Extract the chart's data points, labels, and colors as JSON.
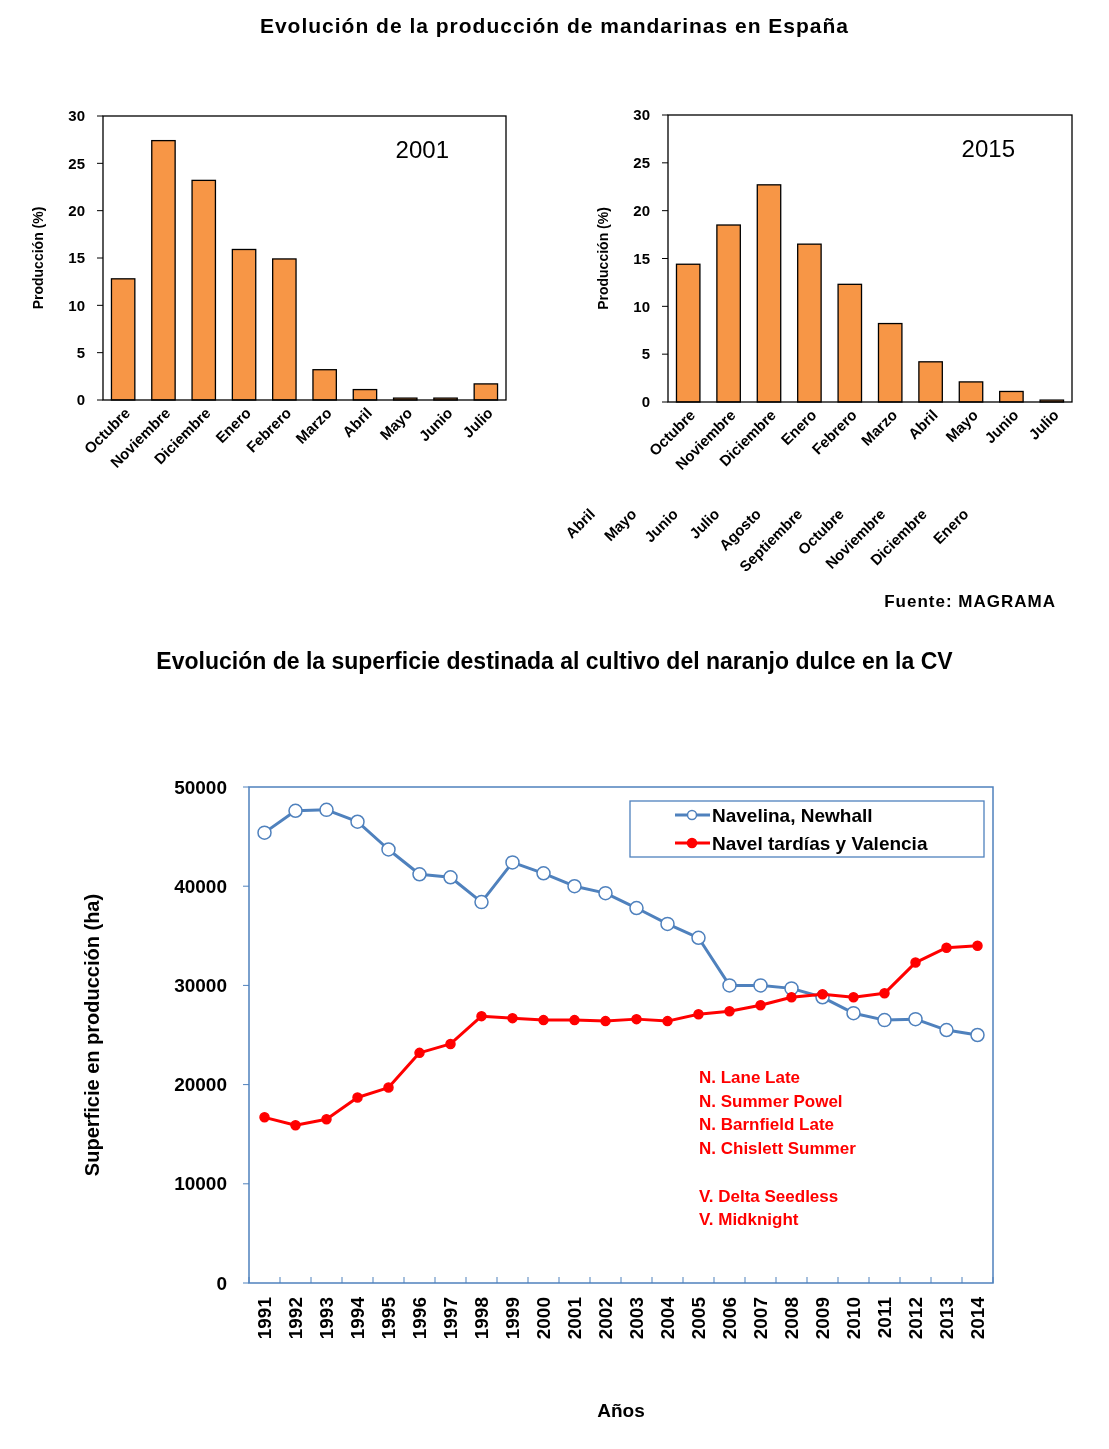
{
  "chart_data": [
    {
      "type": "bar",
      "title": "Evolución de la producción de mandarinas en España",
      "ylabel": "Producción (%)",
      "categories": [
        "Octubre",
        "Noviembre",
        "Diciembre",
        "Enero",
        "Febrero",
        "Marzo",
        "Abril",
        "Mayo",
        "Junio",
        "Julio"
      ],
      "values": [
        12.8,
        27.4,
        23.2,
        15.9,
        14.9,
        3.2,
        1.1,
        0.2,
        0.2,
        1.7
      ],
      "color": "#f79646",
      "ylim": [
        0,
        30
      ],
      "yticks": [
        0,
        5,
        10,
        15,
        20,
        25,
        30
      ],
      "annotations": [
        "2001"
      ]
    },
    {
      "type": "bar",
      "ylabel": "Producción (%)",
      "categories": [
        "Octubre",
        "Noviembre",
        "Diciembre",
        "Enero",
        "Febrero",
        "Marzo",
        "Abril",
        "Mayo",
        "Junio",
        "Julio"
      ],
      "values": [
        14.4,
        18.5,
        22.7,
        16.5,
        12.3,
        8.2,
        4.2,
        2.1,
        1.1,
        0.2
      ],
      "color": "#f79646",
      "ylim": [
        0,
        30
      ],
      "yticks": [
        0,
        5,
        10,
        15,
        20,
        25,
        30
      ],
      "annotations": [
        "2015",
        "Abril",
        "Mayo",
        "Junio",
        "Julio",
        "Agosto",
        "Septiembre",
        "Octubre",
        "Noviembre",
        "Diciembre",
        "Enero",
        "Fuente: MAGRAMA"
      ]
    },
    {
      "type": "line",
      "title": "Evolución de la superficie destinada al cultivo del naranjo dulce en la CV",
      "xlabel": "Años",
      "ylabel": "Superficie en producción (ha)",
      "categories": [
        "1991",
        "1992",
        "1993",
        "1994",
        "1995",
        "1996",
        "1997",
        "1998",
        "1999",
        "2000",
        "2001",
        "2002",
        "2003",
        "2004",
        "2005",
        "2006",
        "2007",
        "2008",
        "2009",
        "2010",
        "2011",
        "2012",
        "2013",
        "2014"
      ],
      "ylim": [
        0,
        50000
      ],
      "yticks": [
        0,
        10000,
        20000,
        30000,
        40000,
        50000
      ],
      "legend": "top right",
      "marker": "circle",
      "line_style": "solid",
      "series": [
        {
          "name": "Navelina, Newhall",
          "color": "#4f81bd",
          "values": [
            45400,
            47600,
            47700,
            46500,
            43700,
            41200,
            40900,
            38400,
            42400,
            41300,
            40000,
            39300,
            37800,
            36200,
            34800,
            30000,
            30000,
            29700,
            28800,
            27200,
            26500,
            26600,
            25500,
            25000
          ]
        },
        {
          "name": "Navel tardías y Valencia",
          "color": "#ff0000",
          "values": [
            16700,
            15900,
            16500,
            18700,
            19700,
            23200,
            24100,
            26900,
            26700,
            26500,
            26500,
            26400,
            26600,
            26400,
            27100,
            27400,
            28000,
            28800,
            29100,
            28800,
            29200,
            32300,
            33800,
            34000
          ]
        }
      ],
      "annotations": [
        "N. Lane Late\nN. Summer Powel\nN. Barnfield Late\nN. Chislett Summer",
        "V. Delta Seedless\nV. Midknight"
      ]
    }
  ]
}
